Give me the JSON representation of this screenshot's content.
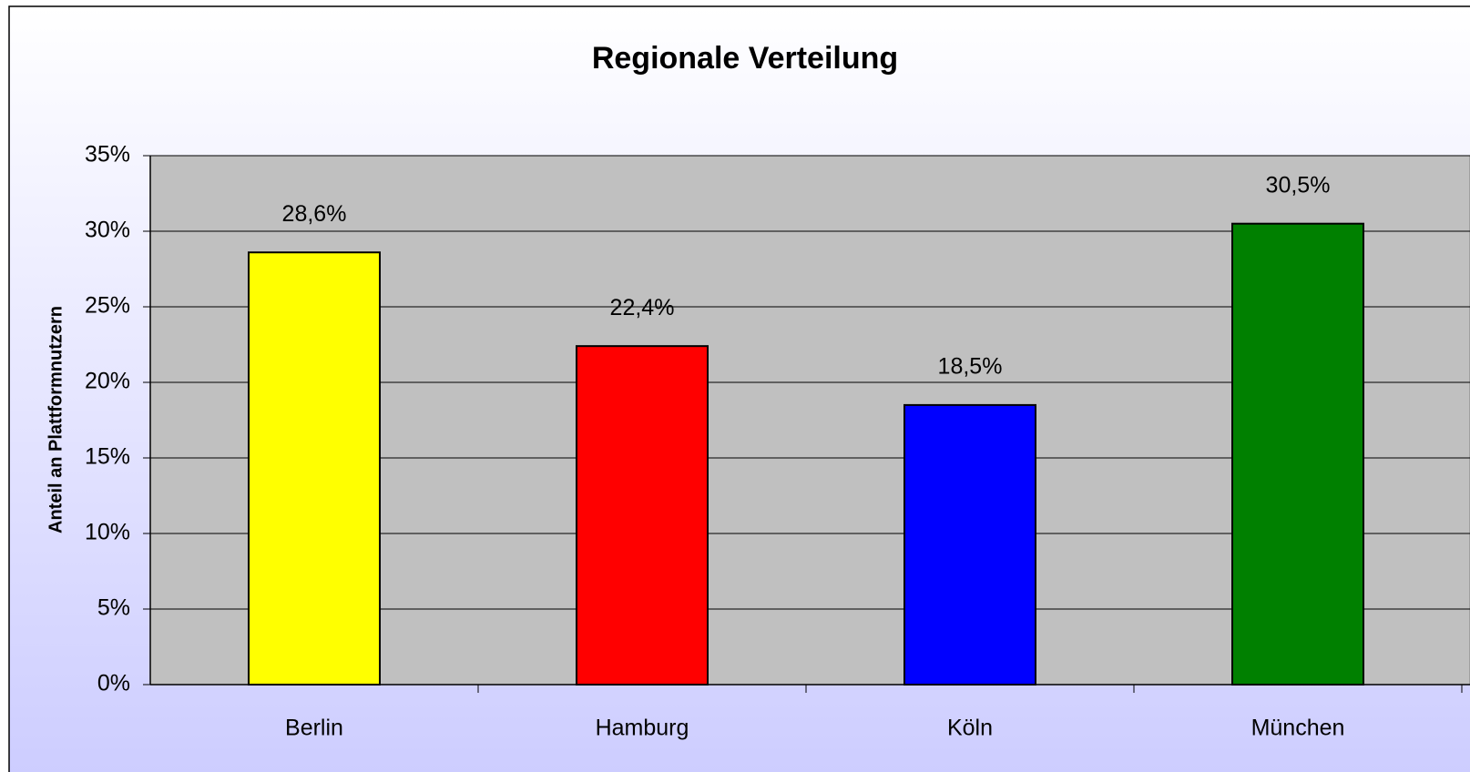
{
  "chart_data": {
    "type": "bar",
    "title": "Regionale Verteilung",
    "y_axis_label": "Anteil an Plattformnutzern",
    "categories": [
      "Berlin",
      "Hamburg",
      "Köln",
      "München"
    ],
    "values": [
      28.6,
      22.4,
      18.5,
      30.5
    ],
    "value_labels": [
      "28,6%",
      "22,4%",
      "18,5%",
      "30,5%"
    ],
    "colors": [
      "#ffff00",
      "#ff0000",
      "#0000ff",
      "#008000"
    ],
    "ylim": [
      0,
      35
    ],
    "yticks": [
      {
        "value": 0,
        "label": "0%"
      },
      {
        "value": 5,
        "label": "5%"
      },
      {
        "value": 10,
        "label": "10%"
      },
      {
        "value": 15,
        "label": "15%"
      },
      {
        "value": 20,
        "label": "20%"
      },
      {
        "value": 25,
        "label": "25%"
      },
      {
        "value": 30,
        "label": "30%"
      },
      {
        "value": 35,
        "label": "35%"
      }
    ],
    "grid": true
  }
}
